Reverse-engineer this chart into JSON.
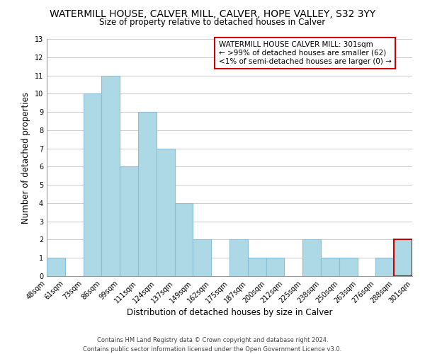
{
  "title": "WATERMILL HOUSE, CALVER MILL, CALVER, HOPE VALLEY, S32 3YY",
  "subtitle": "Size of property relative to detached houses in Calver",
  "xlabel": "Distribution of detached houses by size in Calver",
  "ylabel": "Number of detached properties",
  "bar_labels": [
    "48sqm",
    "61sqm",
    "73sqm",
    "86sqm",
    "99sqm",
    "111sqm",
    "124sqm",
    "137sqm",
    "149sqm",
    "162sqm",
    "175sqm",
    "187sqm",
    "200sqm",
    "212sqm",
    "225sqm",
    "238sqm",
    "250sqm",
    "263sqm",
    "276sqm",
    "288sqm",
    "301sqm"
  ],
  "bar_values": [
    1,
    0,
    10,
    11,
    6,
    9,
    7,
    4,
    2,
    0,
    2,
    1,
    1,
    0,
    2,
    1,
    1,
    0,
    1,
    2
  ],
  "bar_color": "#add8e6",
  "bar_edge_color": "#8bbdd9",
  "ylim": [
    0,
    13
  ],
  "yticks": [
    0,
    1,
    2,
    3,
    4,
    5,
    6,
    7,
    8,
    9,
    10,
    11,
    12,
    13
  ],
  "grid_color": "#cccccc",
  "annotation_box_text": "WATERMILL HOUSE CALVER MILL: 301sqm\n← >99% of detached houses are smaller (62)\n<1% of semi-detached houses are larger (0) →",
  "annotation_box_edge_color": "#cc0000",
  "footer_line1": "Contains HM Land Registry data © Crown copyright and database right 2024.",
  "footer_line2": "Contains public sector information licensed under the Open Government Licence v3.0.",
  "bg_color": "#ffffff",
  "title_fontsize": 10,
  "subtitle_fontsize": 8.5,
  "axis_label_fontsize": 8.5,
  "tick_fontsize": 7,
  "annotation_fontsize": 7.5,
  "footer_fontsize": 6,
  "last_bar_edge_color": "#cc0000"
}
